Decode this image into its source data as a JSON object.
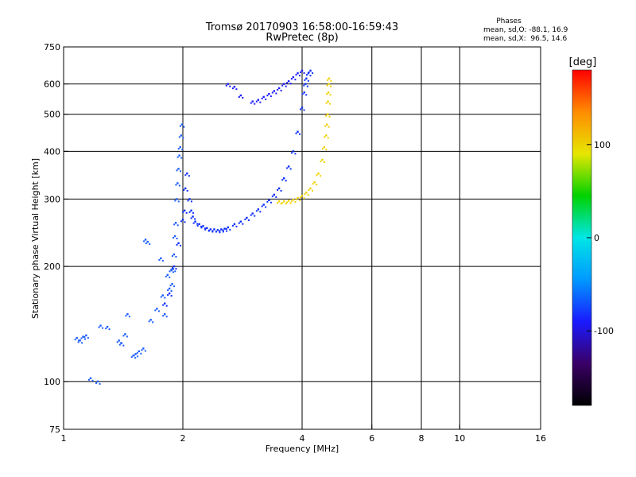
{
  "header": {
    "title_line1": "Tromsø 20170903 16:58:00-16:59:43",
    "title_line2": "RwPretec (8p)",
    "phases_title": "Phases",
    "phases_o": "mean, sd,O: -88.1, 16.9",
    "phases_x": "mean, sd,X:  96.5, 14.6"
  },
  "chart_data": {
    "type": "scatter",
    "xlabel": "Frequency [MHz]",
    "ylabel": "Stationary phase Virtual Height [km]",
    "x_scale": "log",
    "y_scale": "log",
    "xlim": [
      1,
      16
    ],
    "ylim": [
      75,
      750
    ],
    "x_ticks": [
      {
        "v": 1,
        "label": "1"
      },
      {
        "v": 2,
        "label": "2"
      },
      {
        "v": 4,
        "label": "4"
      },
      {
        "v": 6,
        "label": "6"
      },
      {
        "v": 8,
        "label": "8"
      },
      {
        "v": 10,
        "label": "10"
      },
      {
        "v": 16,
        "label": "16"
      }
    ],
    "y_ticks": [
      {
        "v": 75,
        "label": "75"
      },
      {
        "v": 100,
        "label": "100"
      },
      {
        "v": 200,
        "label": "200"
      },
      {
        "v": 300,
        "label": "300"
      },
      {
        "v": 400,
        "label": "400"
      },
      {
        "v": 500,
        "label": "500"
      },
      {
        "v": 600,
        "label": "600"
      },
      {
        "v": 750,
        "label": "750"
      }
    ],
    "grid_x": [
      2,
      4,
      6,
      8,
      10
    ],
    "grid_y": [
      100,
      200,
      300,
      400,
      500,
      600
    ],
    "grid": true,
    "colorbar": {
      "label": "[deg]",
      "range": [
        -180,
        180
      ],
      "ticks": [
        {
          "v": 100,
          "label": "100"
        },
        {
          "v": 0,
          "label": "0"
        },
        {
          "v": -100,
          "label": "-100"
        }
      ],
      "stops": [
        "#000000",
        "#3a0066",
        "#1a1aff",
        "#0099ff",
        "#00e6e6",
        "#00d200",
        "#e6e600",
        "#ff8c00",
        "#ff0000"
      ]
    },
    "series": [
      {
        "phase_deg": -88,
        "x": [
          1.08,
          1.1,
          1.12,
          1.14,
          1.17,
          1.22,
          1.24,
          1.29,
          1.38,
          1.4,
          1.43,
          1.45,
          1.5,
          1.52,
          1.55,
          1.59,
          1.61,
          1.63,
          1.66,
          1.72,
          1.76,
          1.78,
          1.8,
          1.83,
          1.85,
          1.87,
          1.88,
          1.89,
          1.9,
          1.91,
          1.92,
          1.93,
          1.94,
          1.95,
          1.96,
          1.97,
          1.98,
          1.99
        ],
        "y": [
          130,
          128,
          131,
          132,
          102,
          100,
          140,
          139,
          128,
          126,
          133,
          150,
          117,
          118,
          120,
          122,
          235,
          232,
          145,
          155,
          210,
          168,
          150,
          190,
          175,
          196,
          180,
          197,
          215,
          240,
          260,
          300,
          330,
          360,
          390,
          410,
          440,
          470
        ],
        "color": "#1a5cff"
      },
      {
        "phase_deg": -88,
        "x": [
          1.8,
          1.85,
          1.9,
          1.95,
          2.0,
          2.02,
          2.03,
          2.05,
          2.08,
          2.1,
          2.12,
          2.15,
          2.2,
          2.25,
          2.3,
          2.35,
          2.4,
          2.45,
          2.5,
          2.55,
          2.6,
          2.7,
          2.8,
          2.9,
          3.0,
          3.1,
          3.2,
          3.3,
          3.4,
          3.5,
          3.6,
          3.7,
          3.8,
          3.9,
          4.0,
          4.05,
          4.08,
          4.1,
          4.15,
          4.2
        ],
        "y": [
          160,
          170,
          200,
          230,
          265,
          280,
          320,
          350,
          300,
          280,
          270,
          262,
          258,
          255,
          252,
          250,
          250,
          249,
          250,
          251,
          253,
          258,
          262,
          268,
          275,
          282,
          290,
          298,
          308,
          320,
          340,
          365,
          400,
          450,
          520,
          570,
          600,
          620,
          640,
          650
        ],
        "color": "#0a2cff"
      },
      {
        "phase_deg": -95,
        "x": [
          2.6,
          2.7,
          2.8,
          3.0,
          3.1,
          3.2,
          3.3,
          3.4,
          3.5,
          3.6,
          3.7,
          3.8,
          3.9,
          4.0
        ],
        "y": [
          600,
          590,
          560,
          540,
          545,
          555,
          565,
          575,
          585,
          600,
          610,
          625,
          640,
          650
        ],
        "color": "#1a1aff"
      },
      {
        "phase_deg": 96,
        "x": [
          3.5,
          3.6,
          3.7,
          3.8,
          3.9,
          4.0,
          4.1,
          4.2,
          4.3,
          4.4,
          4.5,
          4.55,
          4.6,
          4.62,
          4.64,
          4.65,
          4.66,
          4.67,
          4.68
        ],
        "y": [
          296,
          296,
          297,
          299,
          302,
          306,
          312,
          320,
          332,
          350,
          380,
          410,
          440,
          470,
          500,
          540,
          570,
          600,
          620
        ],
        "color": "#f0d000"
      }
    ]
  }
}
